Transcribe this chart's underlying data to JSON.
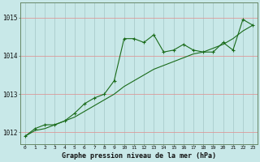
{
  "x": [
    0,
    1,
    2,
    3,
    4,
    5,
    6,
    7,
    8,
    9,
    10,
    11,
    12,
    13,
    14,
    15,
    16,
    17,
    18,
    19,
    20,
    21,
    22,
    23
  ],
  "line1": [
    1011.9,
    1012.1,
    1012.2,
    1012.2,
    1012.3,
    1012.5,
    1012.75,
    1012.9,
    1013.0,
    1013.35,
    1014.45,
    1014.45,
    1014.35,
    1014.55,
    1014.1,
    1014.15,
    1014.3,
    1014.15,
    1014.1,
    1014.1,
    1014.35,
    1014.15,
    1014.95,
    1014.8
  ],
  "smooth_line": [
    1011.9,
    1012.05,
    1012.1,
    1012.2,
    1012.3,
    1012.4,
    1012.55,
    1012.7,
    1012.85,
    1013.0,
    1013.2,
    1013.35,
    1013.5,
    1013.65,
    1013.75,
    1013.85,
    1013.95,
    1014.05,
    1014.1,
    1014.2,
    1014.3,
    1014.45,
    1014.65,
    1014.8
  ],
  "bg_color": "#c8e8e8",
  "line_color": "#1a6b1a",
  "hgrid_color": "#dd9999",
  "vgrid_color": "#aacccc",
  "xlabel": "Graphe pression niveau de la mer (hPa)",
  "yticks": [
    1012,
    1013,
    1014,
    1015
  ],
  "ylim": [
    1011.7,
    1015.4
  ],
  "xlim": [
    -0.5,
    23.5
  ]
}
